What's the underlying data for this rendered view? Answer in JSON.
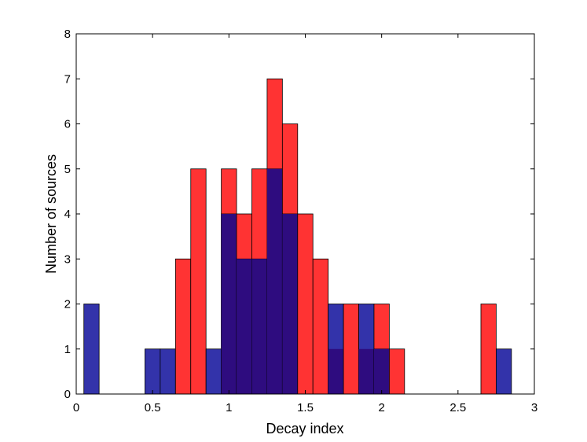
{
  "chart_data": {
    "type": "bar",
    "title": "",
    "xlabel": "Decay index",
    "ylabel": "Number of sources",
    "xlim": [
      0,
      3
    ],
    "ylim": [
      0,
      8
    ],
    "xticks": [
      "0",
      "0.5",
      "1",
      "1.5",
      "2",
      "2.5",
      "3"
    ],
    "yticks": [
      "0",
      "1",
      "2",
      "3",
      "4",
      "5",
      "6",
      "7",
      "8"
    ],
    "bin_width": 0.1,
    "bin_centers": [
      0.1,
      0.2,
      0.3,
      0.4,
      0.5,
      0.6,
      0.7,
      0.8,
      0.9,
      1.0,
      1.1,
      1.2,
      1.3,
      1.4,
      1.5,
      1.6,
      1.7,
      1.8,
      1.9,
      2.0,
      2.1,
      2.2,
      2.3,
      2.4,
      2.5,
      2.6,
      2.7,
      2.8
    ],
    "series": [
      {
        "name": "red",
        "color": "#ff3333",
        "values": [
          0,
          0,
          0,
          0,
          0,
          0,
          3,
          5,
          0,
          5,
          4,
          5,
          7,
          6,
          4,
          3,
          1,
          2,
          1,
          2,
          1,
          0,
          0,
          0,
          0,
          0,
          2,
          0
        ]
      },
      {
        "name": "blue",
        "color": "#3333aa",
        "values": [
          2,
          0,
          0,
          0,
          1,
          1,
          0,
          0,
          1,
          4,
          3,
          3,
          5,
          4,
          0,
          0,
          2,
          0,
          2,
          1,
          0,
          0,
          0,
          0,
          0,
          0,
          0,
          1
        ]
      }
    ],
    "overlap_color": "#2e0c7f"
  }
}
